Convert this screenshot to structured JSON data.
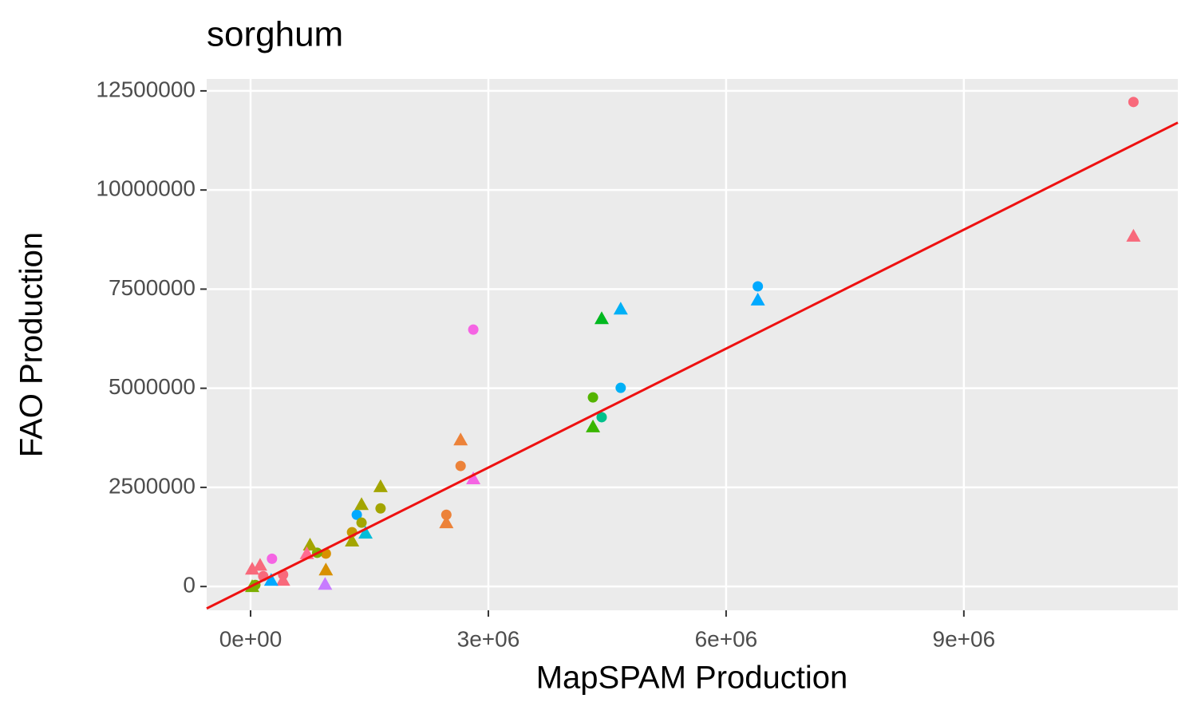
{
  "chart_data": {
    "type": "scatter",
    "title": "sorghum",
    "x_label": "MapSPAM Production",
    "y_label": "FAO Production",
    "xlim": [
      -554000,
      11700000
    ],
    "ylim": [
      -600000,
      12800000
    ],
    "xticks": [
      {
        "value": 0,
        "label": "0e+00"
      },
      {
        "value": 3000000,
        "label": "3e+06"
      },
      {
        "value": 6000000,
        "label": "6e+06"
      },
      {
        "value": 9000000,
        "label": "9e+06"
      }
    ],
    "yticks": [
      0,
      2500000,
      5000000,
      7500000,
      10000000,
      12500000
    ],
    "grid": true,
    "reference_line": {
      "slope": 1,
      "intercept": 0,
      "color": "#ee1111"
    },
    "series": [
      {
        "shape": "circle",
        "x": [
          11140000,
          6400000,
          2810000,
          4670000,
          4320000,
          4430000,
          2650000,
          2470000,
          1640000,
          1340000,
          1400000,
          1280000,
          950000,
          270000,
          410000,
          160000,
          60000,
          840000
        ],
        "values": [
          12220000,
          7570000,
          6480000,
          5010000,
          4770000,
          4270000,
          3040000,
          1810000,
          1970000,
          1810000,
          1610000,
          1370000,
          830000,
          700000,
          300000,
          260000,
          40000,
          850000
        ],
        "colors": [
          "#f8697b",
          "#00a9ff",
          "#f564e3",
          "#00b0f6",
          "#53b400",
          "#00c08b",
          "#ec8239",
          "#ec8239",
          "#a3a500",
          "#00a9ff",
          "#a3a500",
          "#c49a00",
          "#d89000",
          "#f564e3",
          "#f8697b",
          "#f8697b",
          "#7cae00",
          "#7cae00"
        ]
      },
      {
        "shape": "triangle",
        "x": [
          11140000,
          6400000,
          4670000,
          4430000,
          4320000,
          2650000,
          2810000,
          2470000,
          1640000,
          1400000,
          1450000,
          1280000,
          750000,
          950000,
          940000,
          120000,
          20000,
          410000,
          710000,
          20000,
          260000
        ],
        "values": [
          8840000,
          7230000,
          7000000,
          6760000,
          4030000,
          3700000,
          2720000,
          1610000,
          2520000,
          2070000,
          1350000,
          1150000,
          1050000,
          420000,
          60000,
          540000,
          440000,
          160000,
          830000,
          0,
          160000
        ],
        "colors": [
          "#f8697b",
          "#00a9ff",
          "#00b0f6",
          "#00b81f",
          "#39b600",
          "#ec8239",
          "#f564e3",
          "#ec8239",
          "#a3a500",
          "#a3a500",
          "#00bcd8",
          "#a3a500",
          "#a3a500",
          "#d89000",
          "#c77cff",
          "#f8697b",
          "#f8697b",
          "#f8697b",
          "#ff6c91",
          "#7cae00",
          "#00a9ff"
        ]
      }
    ]
  }
}
